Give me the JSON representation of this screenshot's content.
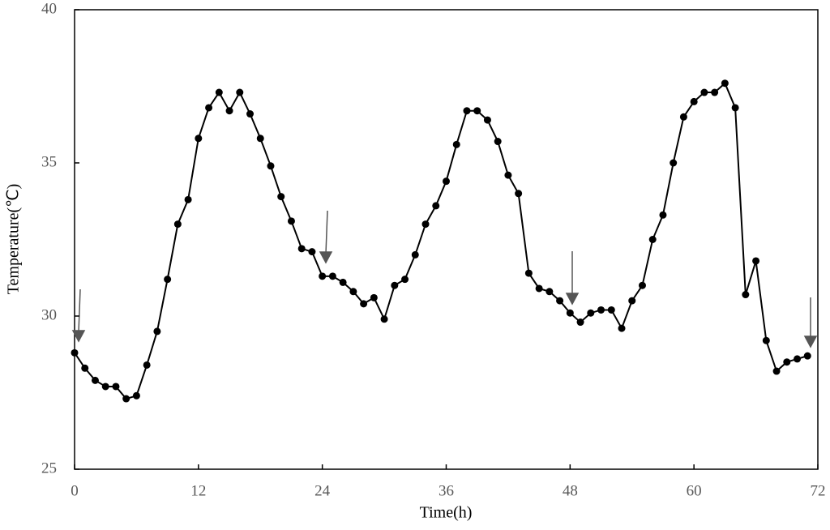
{
  "chart_data": {
    "type": "line",
    "x_label": "Time(h)",
    "y_label": "Temperature(℃)",
    "x": [
      0,
      1,
      2,
      3,
      4,
      5,
      6,
      7,
      8,
      9,
      10,
      11,
      12,
      13,
      14,
      15,
      16,
      17,
      18,
      19,
      20,
      21,
      22,
      23,
      24,
      25,
      26,
      27,
      28,
      29,
      30,
      31,
      32,
      33,
      34,
      35,
      36,
      37,
      38,
      39,
      40,
      41,
      42,
      43,
      44,
      45,
      46,
      47,
      48,
      49,
      50,
      51,
      52,
      53,
      54,
      55,
      56,
      57,
      58,
      59,
      60,
      61,
      62,
      63,
      64,
      65,
      66,
      67,
      68,
      69,
      70,
      71
    ],
    "series": [
      {
        "name": "Temperature",
        "color": "#000000",
        "values": [
          28.8,
          28.3,
          27.9,
          27.7,
          27.7,
          27.3,
          27.4,
          28.4,
          29.5,
          31.2,
          33.0,
          33.8,
          35.8,
          36.8,
          37.3,
          36.7,
          37.3,
          36.6,
          35.8,
          34.9,
          33.9,
          33.1,
          32.2,
          32.1,
          31.3,
          31.3,
          31.1,
          30.8,
          30.4,
          30.6,
          29.9,
          31.0,
          31.2,
          32.0,
          33.0,
          33.6,
          34.4,
          35.6,
          36.7,
          36.7,
          36.4,
          35.7,
          34.6,
          34.0,
          31.4,
          30.9,
          30.8,
          30.5,
          30.1,
          29.8,
          30.1,
          30.2,
          30.2,
          29.6,
          30.5,
          31.0,
          32.5,
          33.3,
          35.0,
          36.5,
          37.0,
          37.3,
          37.3,
          37.6,
          36.8,
          30.7,
          31.8,
          29.2,
          28.2,
          28.5,
          28.6,
          28.7
        ]
      }
    ],
    "xlim": [
      0,
      72
    ],
    "xticks": [
      0,
      12,
      24,
      36,
      48,
      60,
      72
    ],
    "ylim": [
      25,
      40
    ],
    "yticks": [
      25,
      30,
      35,
      40
    ]
  }
}
